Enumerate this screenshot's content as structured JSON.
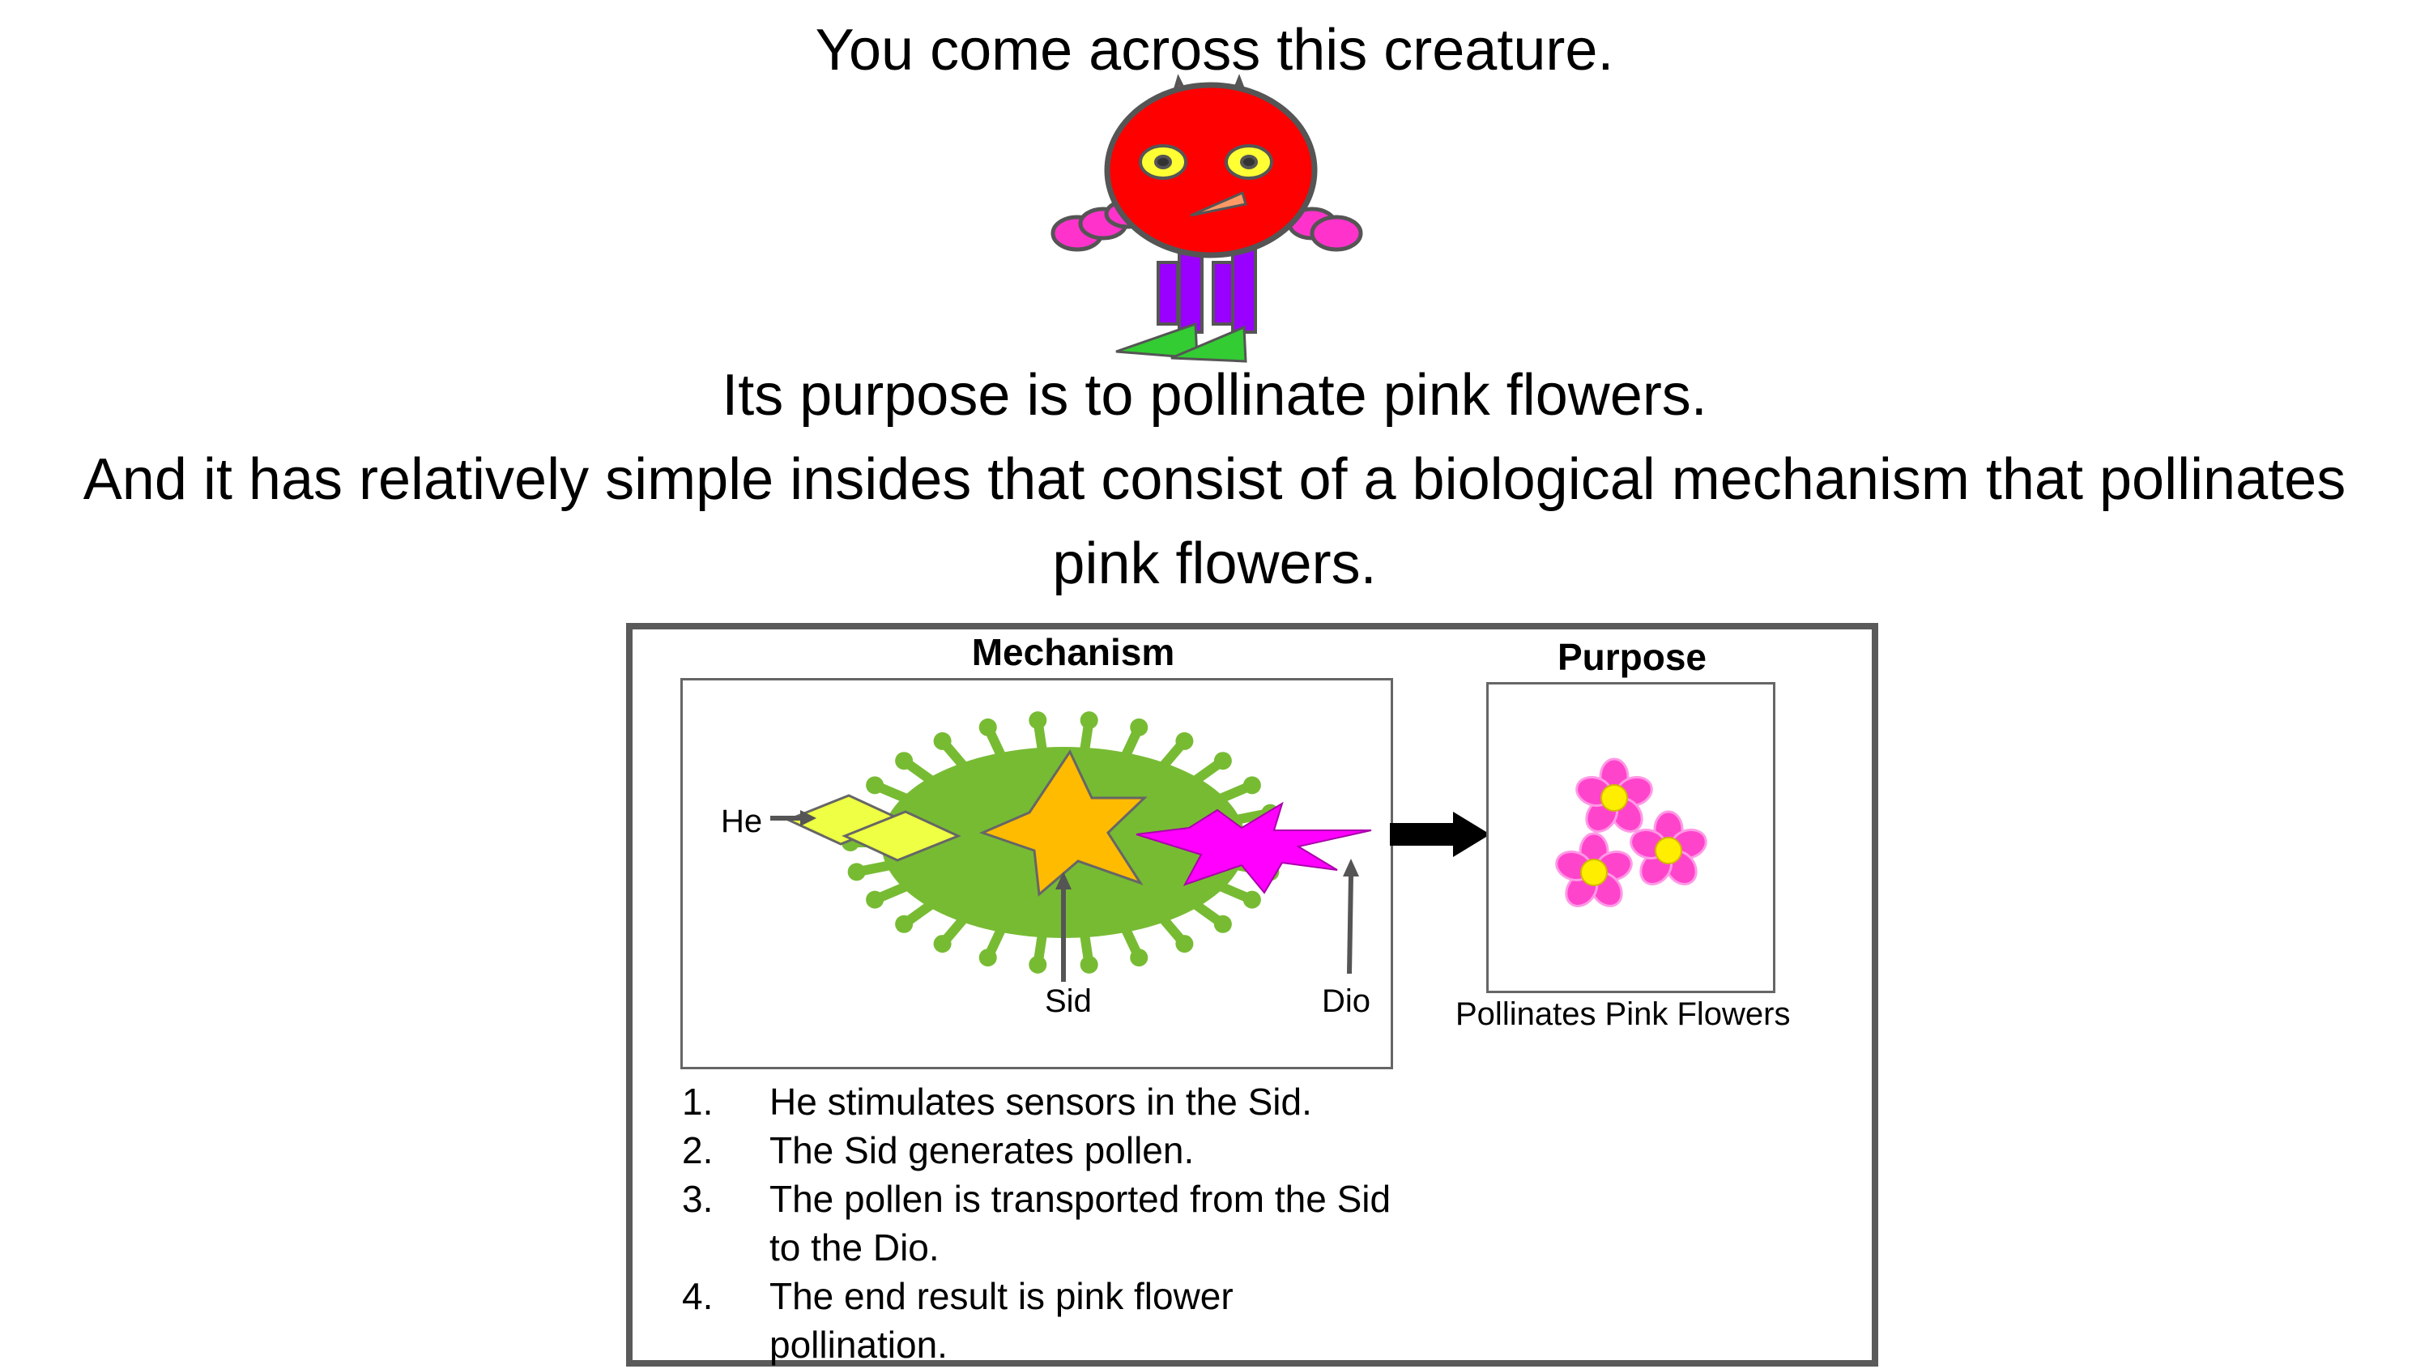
{
  "intro": "You come across this creature.",
  "purpose_line": "Its purpose is to pollinate pink flowers.",
  "insides_line_1": "And it has relatively simple insides that consist of a biological mechanism that pollinates",
  "insides_line_2": "pink flowers.",
  "diagram": {
    "mechanism_title": "Mechanism",
    "purpose_title": "Purpose",
    "labels": {
      "he": "He",
      "sid": "Sid",
      "dio": "Dio"
    },
    "purpose_caption": "Pollinates Pink Flowers"
  },
  "steps": [
    {
      "num": "1.",
      "text": "He stimulates sensors in the Sid."
    },
    {
      "num": "2.",
      "text": "The Sid generates pollen."
    },
    {
      "num": "3.",
      "text": "The pollen is transported from the Sid to the Dio."
    },
    {
      "num": "4.",
      "text": "The end result is pink flower pollination."
    }
  ],
  "colors": {
    "creature_body": "#ff0000",
    "creature_limbs": "#ff33cc",
    "creature_legs": "#9900ff",
    "creature_feet": "#33cc33",
    "mechanism_green": "#77bb33",
    "sid_star": "#ffbb00",
    "he_diamond": "#eeff44",
    "dio_burst": "#ff00ff",
    "flower": "#ff44cc",
    "flower_center": "#ffee00"
  }
}
